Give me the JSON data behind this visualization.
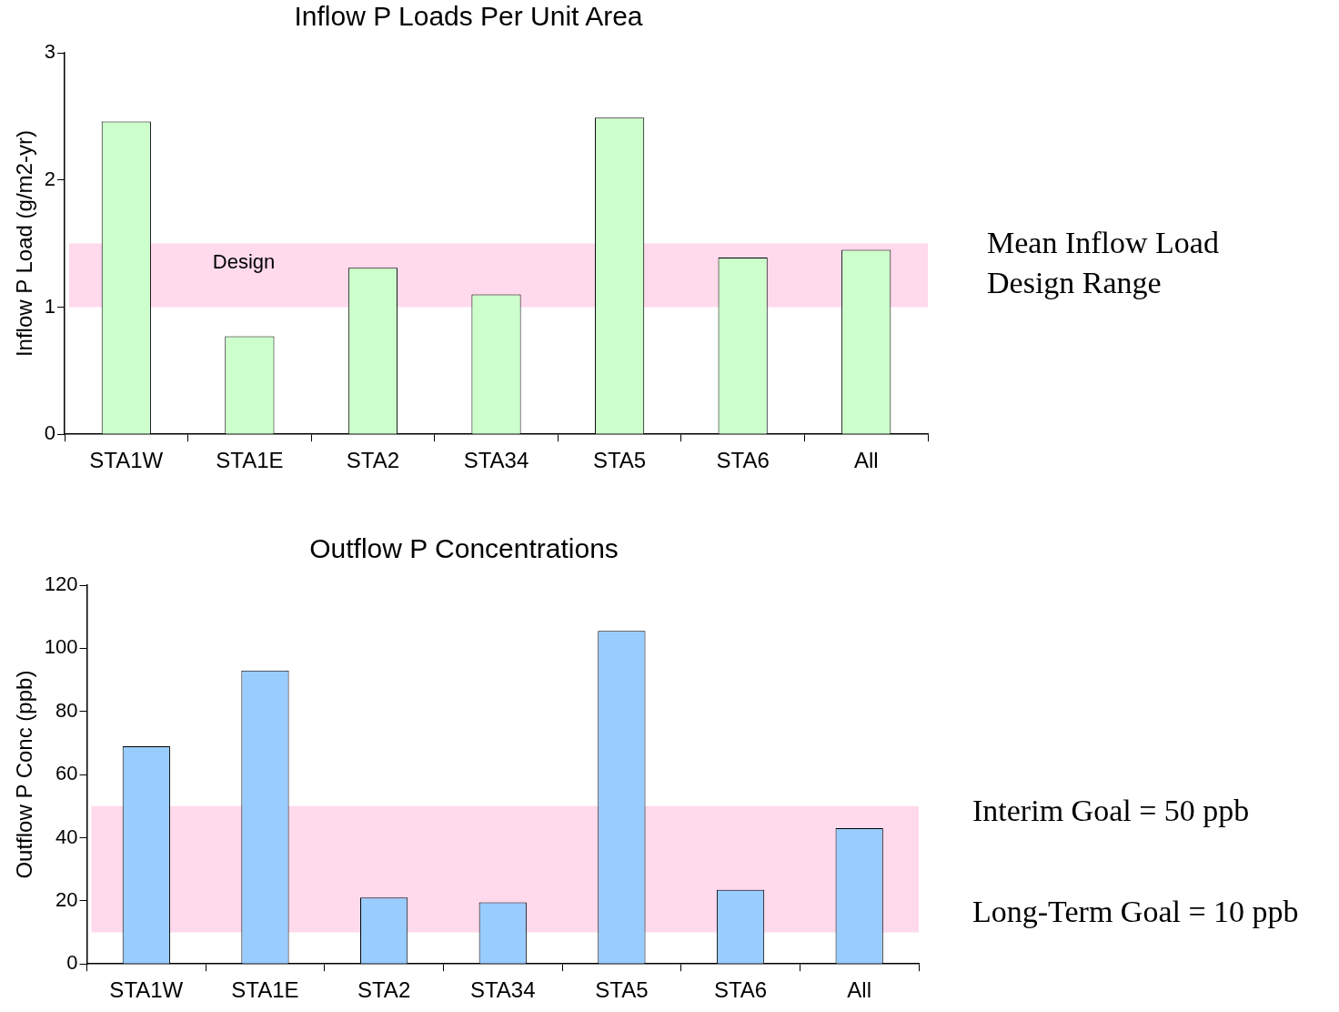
{
  "chart_data": [
    {
      "type": "bar",
      "title": "Inflow P Loads Per Unit Area",
      "ylabel": "Inflow P Load (g/m2-yr)",
      "categories": [
        "STA1W",
        "STA1E",
        "STA2",
        "STA34",
        "STA5",
        "STA6",
        "All"
      ],
      "values": [
        2.46,
        0.77,
        1.31,
        1.1,
        2.49,
        1.39,
        1.45
      ],
      "color": "#ccffcc",
      "ylim": [
        0,
        3
      ],
      "yticks": [
        0,
        1,
        2,
        3
      ],
      "grid": false,
      "legend": false,
      "bands": [
        {
          "axis": "y",
          "from": 1,
          "to": 1.5,
          "label": "Design",
          "color": "#ffd9ec"
        }
      ],
      "annotations": [
        "Mean Inflow Load",
        "Design Range"
      ]
    },
    {
      "type": "bar",
      "title": "Outflow P Concentrations",
      "ylabel": "Outflow P Conc (ppb)",
      "categories": [
        "STA1W",
        "STA1E",
        "STA2",
        "STA34",
        "STA5",
        "STA6",
        "All"
      ],
      "values": [
        69,
        93,
        21,
        19.5,
        105.5,
        23.5,
        43
      ],
      "color": "#99ccff",
      "ylim": [
        0,
        120
      ],
      "yticks": [
        0,
        20,
        40,
        60,
        80,
        100,
        120
      ],
      "grid": false,
      "legend": false,
      "bands": [
        {
          "axis": "y",
          "from": 10,
          "to": 50,
          "label": null,
          "color": "#ffd9ec"
        }
      ],
      "annotations": [
        "Interim Goal = 50 ppb",
        "Long-Term Goal = 10 ppb"
      ]
    }
  ]
}
